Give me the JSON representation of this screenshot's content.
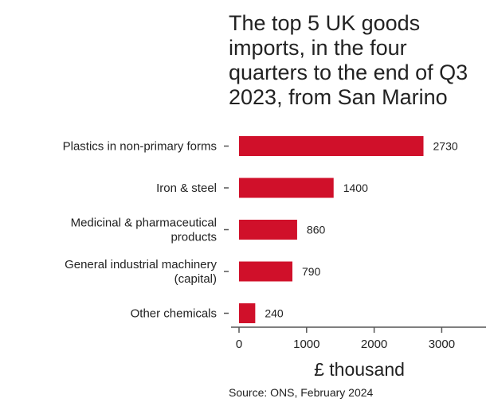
{
  "chart_data": {
    "type": "bar",
    "orientation": "horizontal",
    "title": "The top 5 UK goods imports, in the four quarters to the end of Q3 2023, from San Marino",
    "categories": [
      "Plastics in non-primary forms",
      "Iron & steel",
      "Medicinal & pharmaceutical products",
      "General industrial machinery (capital)",
      "Other chemicals"
    ],
    "category_lines": [
      [
        "Plastics in non-primary forms"
      ],
      [
        "Iron & steel"
      ],
      [
        "Medicinal & pharmaceutical",
        "products"
      ],
      [
        "General industrial machinery",
        "(capital)"
      ],
      [
        "Other chemicals"
      ]
    ],
    "values": [
      2730,
      1400,
      860,
      790,
      240
    ],
    "data_labels": [
      "2730",
      "1400",
      "860",
      "790",
      "240"
    ],
    "xlabel": "£ thousand",
    "ylabel": "",
    "xlim": [
      0,
      3700
    ],
    "xticks": [
      0,
      1000,
      2000,
      3000
    ],
    "xtick_labels": [
      "0",
      "1000",
      "2000",
      "3000"
    ],
    "bar_color": "#d0102a",
    "grid": false,
    "legend": "none"
  },
  "source": "Source: ONS, February 2024"
}
